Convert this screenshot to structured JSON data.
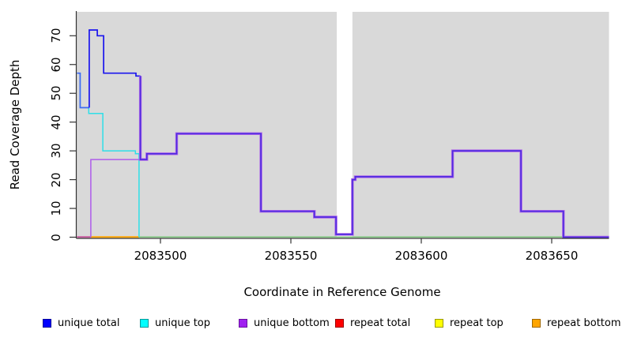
{
  "chart_data": {
    "type": "line",
    "subtype": "step-coverage",
    "title": "",
    "xlabel": "Coordinate in Reference Genome",
    "ylabel": "Read Coverage Depth",
    "x_ticks": [
      2083500,
      2083550,
      2083600,
      2083650
    ],
    "y_ticks": [
      0,
      10,
      20,
      30,
      40,
      50,
      60,
      70
    ],
    "x_range": [
      2083468,
      2083672
    ],
    "y_range": [
      0,
      72
    ],
    "plot_bg_color": "#d9d9d9",
    "gap_band": {
      "x_from": 2083567.6,
      "x_to": 2083573.6,
      "color": "#ffffff"
    },
    "series": [
      {
        "name": "unique top",
        "color": "#2fdfe8",
        "width": 1.5,
        "start_y": 57,
        "end_x": 2083491.8,
        "points": [
          [
            2083468,
            57
          ],
          [
            2083469.2,
            45
          ],
          [
            2083472.5,
            43
          ],
          [
            2083477.9,
            30
          ],
          [
            2083490.4,
            29
          ],
          [
            2083491.8,
            0
          ]
        ]
      },
      {
        "name": "unique total (overlap with unique top)",
        "color": "#3f6af3",
        "width": 1.7,
        "start_y": 57,
        "end_x": 2083472.7,
        "points": [
          [
            2083468,
            57
          ],
          [
            2083469.2,
            45
          ]
        ]
      },
      {
        "name": "unique total",
        "color": "#1a15ee",
        "width": 1.7,
        "start_y": 45,
        "end_x": 2083492.3,
        "points": [
          [
            2083472.7,
            72
          ],
          [
            2083475.8,
            70
          ],
          [
            2083478.2,
            57
          ],
          [
            2083490.6,
            56
          ]
        ]
      },
      {
        "name": "unique bottom",
        "color": "#ae5cea",
        "width": 1.5,
        "start_y": 0,
        "end_x": 2083492.3,
        "points": [
          [
            2083473.3,
            27
          ]
        ]
      },
      {
        "name": "unique total + unique bottom (coincident)",
        "color": "#4f2be0",
        "width": 1.7,
        "underlay": {
          "color": "#b168e9",
          "width": 3.4
        },
        "start_y": 56,
        "end_x": 2083672,
        "points": [
          [
            2083492.3,
            27
          ],
          [
            2083494.8,
            29
          ],
          [
            2083506.2,
            36
          ],
          [
            2083538.5,
            9
          ],
          [
            2083559,
            7
          ],
          [
            2083567.3,
            1
          ],
          [
            2083573.6,
            20
          ],
          [
            2083574.7,
            21
          ],
          [
            2083612,
            30
          ],
          [
            2083638.2,
            9
          ],
          [
            2083654.5,
            0
          ]
        ]
      }
    ],
    "baseline_segments": [
      {
        "name": "repeat total / unique bottom at zero",
        "color": "#c7599e",
        "width": 2,
        "x_from": 2083468,
        "x_to": 2083473.3
      },
      {
        "name": "repeat bottom at zero",
        "color": "#ffa500",
        "width": 2,
        "x_from": 2083473.3,
        "x_to": 2083491.8
      },
      {
        "name": "zero baseline",
        "color": "#7cc77c",
        "width": 1.5,
        "x_from": 2083491.8,
        "x_to": 2083672
      }
    ]
  },
  "legend": {
    "items": [
      {
        "label": "unique total",
        "color": "#0000ff",
        "border": "#000099"
      },
      {
        "label": "unique top",
        "color": "#00ffff",
        "border": "#009999"
      },
      {
        "label": "unique bottom",
        "color": "#a020f0",
        "border": "#6a13a0"
      },
      {
        "label": "repeat total",
        "color": "#ff0000",
        "border": "#990000"
      },
      {
        "label": "repeat top",
        "color": "#ffff00",
        "border": "#999900"
      },
      {
        "label": "repeat bottom",
        "color": "#ffa500",
        "border": "#a06800"
      }
    ]
  }
}
